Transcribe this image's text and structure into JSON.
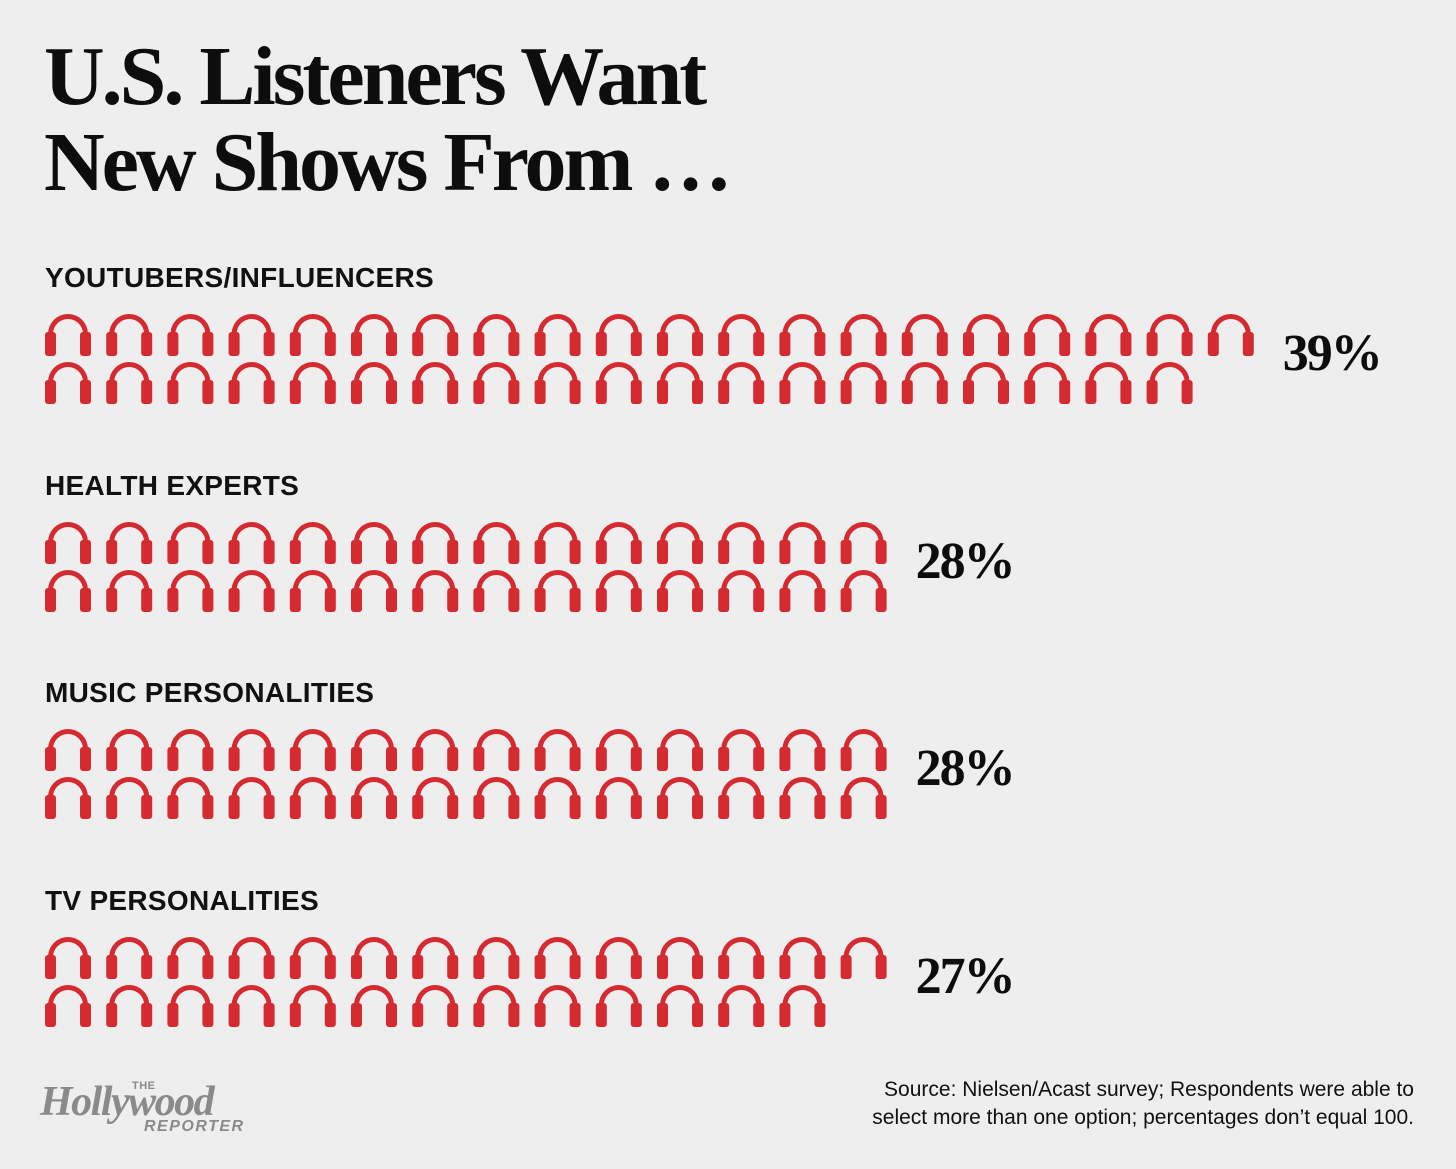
{
  "title_lines": [
    "U.S. Listeners Want",
    "New Shows From …"
  ],
  "chart_data": {
    "type": "pictogram",
    "unit": "%",
    "icon": "headphones-icon",
    "icon_color": "#d42a30",
    "categories": [
      "YOUTUBERS/INFLUENCERS",
      "HEALTH EXPERTS",
      "MUSIC PERSONALITIES",
      "TV PERSONALITIES"
    ],
    "values": [
      39,
      28,
      28,
      27
    ],
    "value_labels": [
      "39%",
      "28%",
      "28%",
      "27%"
    ]
  },
  "logo": {
    "the": "THE",
    "main": "Hollywood",
    "sub": "REPORTER"
  },
  "source_lines": [
    "Source: Nielsen/Acast survey; Respondents were able to",
    "select more than one option; percentages don’t equal 100."
  ]
}
